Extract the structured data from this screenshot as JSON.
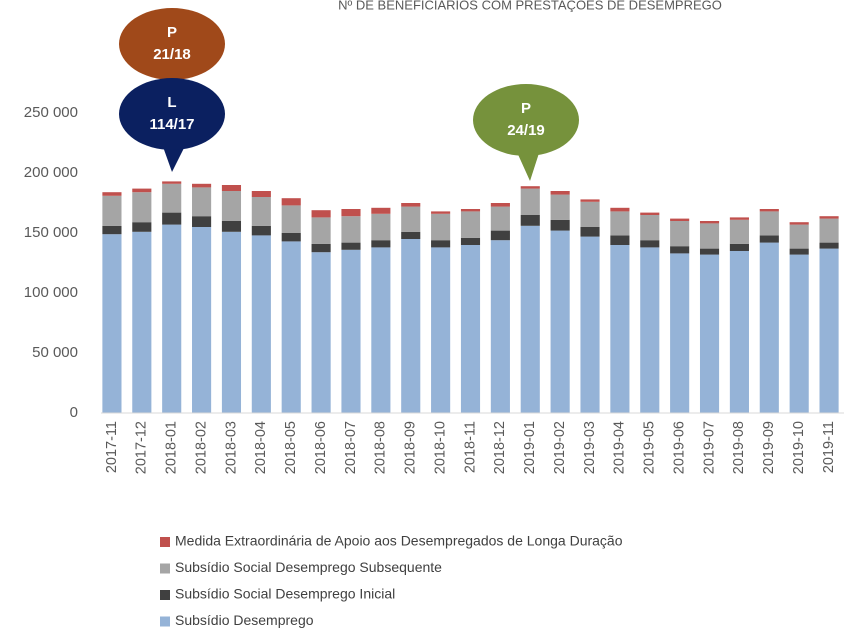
{
  "chart_data": {
    "type": "stacked_bar",
    "title": "Nº DE BENEFICIÁRIOS COM PRESTAÇÕES DE DESEMPREGO",
    "categories": [
      "2017-11",
      "2017-12",
      "2018-01",
      "2018-02",
      "2018-03",
      "2018-04",
      "2018-05",
      "2018-06",
      "2018-07",
      "2018-08",
      "2018-09",
      "2018-10",
      "2018-11",
      "2018-12",
      "2019-01",
      "2019-02",
      "2019-03",
      "2019-04",
      "2019-05",
      "2019-06",
      "2019-07",
      "2019-08",
      "2019-09",
      "2019-10",
      "2019-11"
    ],
    "series": [
      {
        "name": "Subsídio Desemprego",
        "color": "#95b3d7",
        "values": [
          149000,
          151000,
          157000,
          155000,
          151000,
          148000,
          143000,
          134000,
          136000,
          138000,
          145000,
          138000,
          140000,
          144000,
          156000,
          152000,
          147000,
          140000,
          138000,
          133000,
          132000,
          135000,
          142000,
          132000,
          137000
        ]
      },
      {
        "name": "Subsídio Social Desemprego Inicial",
        "color": "#404040",
        "values": [
          7000,
          8000,
          10000,
          9000,
          9000,
          8000,
          7000,
          7000,
          6000,
          6000,
          6000,
          6000,
          6000,
          8000,
          9000,
          9000,
          8000,
          8000,
          6000,
          6000,
          5000,
          6000,
          6000,
          5000,
          5000
        ]
      },
      {
        "name": "Subsídio Social Desemprego Subsequente",
        "color": "#a5a5a5",
        "values": [
          25000,
          25000,
          24000,
          24000,
          25000,
          24000,
          23000,
          22000,
          22000,
          22000,
          21000,
          22000,
          22000,
          20000,
          22000,
          21000,
          21000,
          20000,
          21000,
          21000,
          21000,
          20000,
          20000,
          20000,
          20000
        ]
      },
      {
        "name": "Medida Extraordinária de Apoio aos Desempregados de Longa Duração",
        "color": "#c0504d",
        "values": [
          3000,
          3000,
          2000,
          3000,
          5000,
          5000,
          6000,
          6000,
          6000,
          5000,
          3000,
          2000,
          2000,
          3000,
          2000,
          3000,
          2000,
          3000,
          2000,
          2000,
          2000,
          2000,
          2000,
          2000,
          2000
        ]
      }
    ],
    "ylim": [
      0,
      250000
    ],
    "yticks": [
      0,
      {
        "value": 50000,
        "label": "50 000"
      },
      {
        "value": 100000,
        "label": "100 000"
      },
      {
        "value": 150000,
        "label": "150 000"
      },
      {
        "value": 200000,
        "label": "200 000"
      },
      {
        "value": 250000,
        "label": "250 000"
      }
    ],
    "grid": false,
    "annotations": [
      {
        "lines": [
          "P",
          "21/18"
        ],
        "color": "#a0491a"
      },
      {
        "lines": [
          "L",
          "114/17"
        ],
        "color": "#0b2060"
      },
      {
        "lines": [
          "P",
          "24/19"
        ],
        "color": "#76923c"
      }
    ]
  }
}
